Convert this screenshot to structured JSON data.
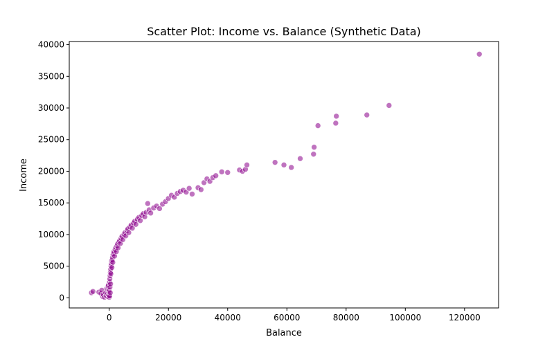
{
  "chart_data": {
    "type": "scatter",
    "title": "Scatter Plot: Income vs. Balance (Synthetic Data)",
    "xlabel": "Balance",
    "ylabel": "Income",
    "xlim": [
      -13500,
      131500
    ],
    "ylim": [
      -1600,
      40500
    ],
    "xticks": [
      0,
      20000,
      40000,
      60000,
      80000,
      100000,
      120000
    ],
    "yticks": [
      0,
      5000,
      10000,
      15000,
      20000,
      25000,
      30000,
      35000,
      40000
    ],
    "grid": false,
    "marker_color": "#8B008B",
    "marker_edge_color": "#ffffff",
    "marker_alpha": 0.55,
    "points": [
      [
        -6000,
        800
      ],
      [
        -5500,
        1000
      ],
      [
        -3500,
        900
      ],
      [
        -2800,
        700
      ],
      [
        -2500,
        1200
      ],
      [
        -2200,
        200
      ],
      [
        -2000,
        500
      ],
      [
        -1600,
        100
      ],
      [
        -1200,
        800
      ],
      [
        -1000,
        300
      ],
      [
        -800,
        1500
      ],
      [
        -600,
        600
      ],
      [
        -500,
        200
      ],
      [
        -400,
        1800
      ],
      [
        -300,
        2000
      ],
      [
        -200,
        400
      ],
      [
        -100,
        900
      ],
      [
        0,
        100
      ],
      [
        0,
        1200
      ],
      [
        100,
        2500
      ],
      [
        150,
        300
      ],
      [
        200,
        3000
      ],
      [
        250,
        1700
      ],
      [
        300,
        3500
      ],
      [
        350,
        800
      ],
      [
        400,
        4000
      ],
      [
        450,
        2200
      ],
      [
        500,
        4500
      ],
      [
        550,
        3800
      ],
      [
        600,
        5000
      ],
      [
        700,
        5400
      ],
      [
        800,
        5800
      ],
      [
        900,
        4800
      ],
      [
        1000,
        6000
      ],
      [
        1100,
        6400
      ],
      [
        1200,
        5600
      ],
      [
        1300,
        6800
      ],
      [
        1500,
        7000
      ],
      [
        1600,
        7300
      ],
      [
        1800,
        6600
      ],
      [
        2000,
        7600
      ],
      [
        2200,
        7900
      ],
      [
        2400,
        7300
      ],
      [
        2600,
        8200
      ],
      [
        2800,
        8500
      ],
      [
        3000,
        7900
      ],
      [
        3200,
        8800
      ],
      [
        3500,
        9000
      ],
      [
        3800,
        8600
      ],
      [
        4000,
        9400
      ],
      [
        4300,
        9700
      ],
      [
        4600,
        9200
      ],
      [
        5000,
        10000
      ],
      [
        5300,
        10300
      ],
      [
        5600,
        9800
      ],
      [
        6000,
        10600
      ],
      [
        6300,
        10900
      ],
      [
        6600,
        10300
      ],
      [
        7000,
        11200
      ],
      [
        7400,
        11500
      ],
      [
        7800,
        11000
      ],
      [
        8200,
        11800
      ],
      [
        8600,
        12100
      ],
      [
        9000,
        11600
      ],
      [
        9500,
        12400
      ],
      [
        10000,
        12700
      ],
      [
        10500,
        12200
      ],
      [
        11000,
        13000
      ],
      [
        11500,
        13300
      ],
      [
        12000,
        12800
      ],
      [
        12500,
        13500
      ],
      [
        13000,
        14900
      ],
      [
        13500,
        13900
      ],
      [
        14000,
        13400
      ],
      [
        15000,
        14200
      ],
      [
        16000,
        14500
      ],
      [
        17000,
        14100
      ],
      [
        18000,
        14800
      ],
      [
        19000,
        15200
      ],
      [
        20000,
        15700
      ],
      [
        21000,
        16200
      ],
      [
        22000,
        15900
      ],
      [
        23000,
        16500
      ],
      [
        24000,
        16800
      ],
      [
        25000,
        17000
      ],
      [
        26000,
        16700
      ],
      [
        27000,
        17300
      ],
      [
        28000,
        16400
      ],
      [
        30000,
        17400
      ],
      [
        31000,
        17100
      ],
      [
        32000,
        18200
      ],
      [
        33000,
        18800
      ],
      [
        34000,
        18400
      ],
      [
        35000,
        19000
      ],
      [
        36000,
        19300
      ],
      [
        38000,
        19900
      ],
      [
        40000,
        19800
      ],
      [
        44000,
        20200
      ],
      [
        45000,
        20000
      ],
      [
        46000,
        20300
      ],
      [
        46500,
        21000
      ],
      [
        56000,
        21400
      ],
      [
        59000,
        21000
      ],
      [
        61500,
        20600
      ],
      [
        64500,
        22000
      ],
      [
        69000,
        22700
      ],
      [
        69200,
        23800
      ],
      [
        70500,
        27200
      ],
      [
        76500,
        27600
      ],
      [
        76700,
        28700
      ],
      [
        87000,
        28900
      ],
      [
        94500,
        30400
      ],
      [
        125000,
        38500
      ]
    ]
  }
}
